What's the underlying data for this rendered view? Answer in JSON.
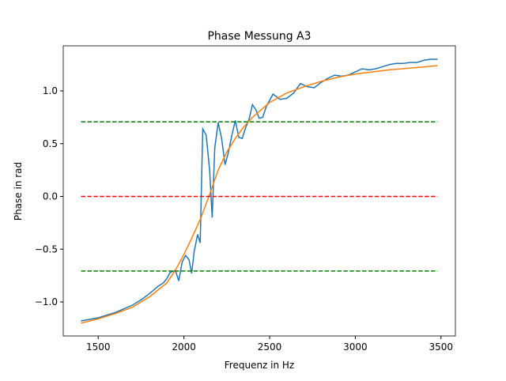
{
  "chart_data": {
    "type": "line",
    "title": "Phase Messung A3",
    "x_label": "Frequenz in Hz",
    "y_label": "Phase in rad",
    "xlim": [
      1296,
      3584
    ],
    "ylim": [
      -1.322,
      1.427
    ],
    "xticks": [
      1500,
      2000,
      2500,
      3000,
      3500
    ],
    "yticks": [
      {
        "value": -1.0,
        "label": "−1.0"
      },
      {
        "value": -0.5,
        "label": "−0.5"
      },
      {
        "value": 0.0,
        "label": "0.0"
      },
      {
        "value": 0.5,
        "label": "0.5"
      },
      {
        "value": 1.0,
        "label": "1.0"
      }
    ],
    "series": [
      {
        "color": "#1f77b4",
        "dash": false,
        "x": [
          1400,
          1500,
          1600,
          1700,
          1750,
          1800,
          1850,
          1880,
          1900,
          1920,
          1950,
          1970,
          1990,
          2010,
          2030,
          2045,
          2060,
          2080,
          2095,
          2110,
          2130,
          2150,
          2165,
          2180,
          2200,
          2220,
          2240,
          2260,
          2280,
          2300,
          2320,
          2340,
          2360,
          2380,
          2400,
          2420,
          2440,
          2460,
          2480,
          2520,
          2560,
          2600,
          2640,
          2680,
          2720,
          2760,
          2800,
          2840,
          2880,
          2920,
          2960,
          3000,
          3040,
          3080,
          3120,
          3160,
          3200,
          3240,
          3280,
          3320,
          3360,
          3400,
          3440,
          3480
        ],
        "values": [
          -1.18,
          -1.15,
          -1.1,
          -1.03,
          -0.98,
          -0.92,
          -0.85,
          -0.82,
          -0.78,
          -0.72,
          -0.7,
          -0.8,
          -0.62,
          -0.56,
          -0.6,
          -0.73,
          -0.52,
          -0.36,
          -0.44,
          0.64,
          0.58,
          0.25,
          -0.2,
          0.46,
          0.7,
          0.55,
          0.3,
          0.42,
          0.58,
          0.72,
          0.56,
          0.55,
          0.65,
          0.73,
          0.87,
          0.82,
          0.74,
          0.75,
          0.85,
          0.97,
          0.92,
          0.93,
          0.98,
          1.07,
          1.04,
          1.03,
          1.08,
          1.12,
          1.15,
          1.14,
          1.15,
          1.18,
          1.21,
          1.2,
          1.21,
          1.23,
          1.25,
          1.26,
          1.26,
          1.27,
          1.27,
          1.29,
          1.3,
          1.3
        ]
      },
      {
        "color": "#ff7f0e",
        "dash": false,
        "x": [
          1400,
          1500,
          1600,
          1700,
          1800,
          1900,
          1950,
          2000,
          2050,
          2100,
          2150,
          2200,
          2250,
          2300,
          2350,
          2400,
          2500,
          2600,
          2700,
          2800,
          2900,
          3000,
          3100,
          3200,
          3350,
          3480
        ],
        "values": [
          -1.2,
          -1.16,
          -1.11,
          -1.05,
          -0.95,
          -0.82,
          -0.7,
          -0.55,
          -0.38,
          -0.2,
          0.02,
          0.25,
          0.42,
          0.55,
          0.66,
          0.75,
          0.89,
          0.98,
          1.04,
          1.09,
          1.13,
          1.16,
          1.18,
          1.2,
          1.22,
          1.24
        ]
      },
      {
        "color": "#008000",
        "dash": true,
        "x": [
          1400,
          3480
        ],
        "values": [
          0.707,
          0.707
        ]
      },
      {
        "color": "#ff0000",
        "dash": true,
        "x": [
          1400,
          3480
        ],
        "values": [
          0,
          0
        ]
      },
      {
        "color": "#008000",
        "dash": true,
        "x": [
          1400,
          3480
        ],
        "values": [
          -0.707,
          -0.707
        ]
      }
    ]
  }
}
